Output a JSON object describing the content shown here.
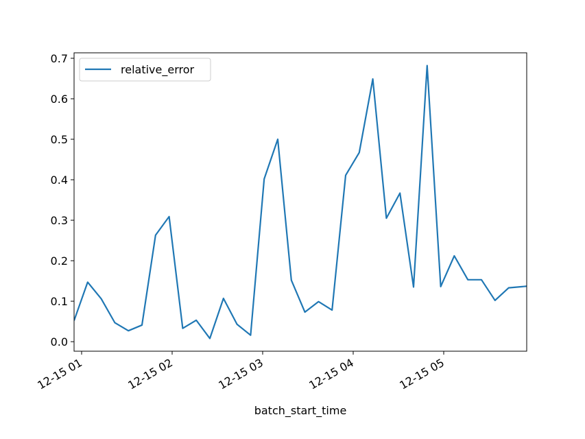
{
  "chart_data": {
    "type": "line",
    "title": "",
    "xlabel": "batch_start_time",
    "ylabel": "",
    "x_type": "time",
    "x_range": [
      "12-15 00:55",
      "12-15 05:55"
    ],
    "ylim": [
      -0.0235,
      0.7135
    ],
    "grid": false,
    "legend_position": "top-left",
    "x_ticks": [
      {
        "value": "12-15 01:00",
        "label": "12-15 01"
      },
      {
        "value": "12-15 02:00",
        "label": "12-15 02"
      },
      {
        "value": "12-15 03:00",
        "label": "12-15 03"
      },
      {
        "value": "12-15 04:00",
        "label": "12-15 04"
      },
      {
        "value": "12-15 05:00",
        "label": "12-15 05"
      }
    ],
    "y_ticks": [
      {
        "value": 0.0,
        "label": "0.0"
      },
      {
        "value": 0.1,
        "label": "0.1"
      },
      {
        "value": 0.2,
        "label": "0.2"
      },
      {
        "value": 0.3,
        "label": "0.3"
      },
      {
        "value": 0.4,
        "label": "0.4"
      },
      {
        "value": 0.5,
        "label": "0.5"
      },
      {
        "value": 0.6,
        "label": "0.6"
      },
      {
        "value": 0.7,
        "label": "0.7"
      }
    ],
    "series": [
      {
        "name": "relative_error",
        "color": "#1f77b4",
        "points": [
          {
            "x": "12-15 00:55",
            "y": 0.052
          },
          {
            "x": "12-15 01:04",
            "y": 0.147
          },
          {
            "x": "12-15 01:13",
            "y": 0.106
          },
          {
            "x": "12-15 01:22",
            "y": 0.047
          },
          {
            "x": "12-15 01:31",
            "y": 0.027
          },
          {
            "x": "12-15 01:40",
            "y": 0.041
          },
          {
            "x": "12-15 01:49",
            "y": 0.263
          },
          {
            "x": "12-15 01:58",
            "y": 0.309
          },
          {
            "x": "12-15 02:07",
            "y": 0.033
          },
          {
            "x": "12-15 02:16",
            "y": 0.053
          },
          {
            "x": "12-15 02:25",
            "y": 0.008
          },
          {
            "x": "12-15 02:34",
            "y": 0.107
          },
          {
            "x": "12-15 02:43",
            "y": 0.043
          },
          {
            "x": "12-15 02:52",
            "y": 0.016
          },
          {
            "x": "12-15 03:01",
            "y": 0.402
          },
          {
            "x": "12-15 03:10",
            "y": 0.5
          },
          {
            "x": "12-15 03:19",
            "y": 0.152
          },
          {
            "x": "12-15 03:28",
            "y": 0.073
          },
          {
            "x": "12-15 03:37",
            "y": 0.099
          },
          {
            "x": "12-15 03:46",
            "y": 0.078
          },
          {
            "x": "12-15 03:55",
            "y": 0.411
          },
          {
            "x": "12-15 04:04",
            "y": 0.467
          },
          {
            "x": "12-15 04:13",
            "y": 0.649
          },
          {
            "x": "12-15 04:22",
            "y": 0.305
          },
          {
            "x": "12-15 04:31",
            "y": 0.367
          },
          {
            "x": "12-15 04:40",
            "y": 0.135
          },
          {
            "x": "12-15 04:49",
            "y": 0.682
          },
          {
            "x": "12-15 04:58",
            "y": 0.136
          },
          {
            "x": "12-15 05:07",
            "y": 0.212
          },
          {
            "x": "12-15 05:16",
            "y": 0.153
          },
          {
            "x": "12-15 05:25",
            "y": 0.153
          },
          {
            "x": "12-15 05:34",
            "y": 0.102
          },
          {
            "x": "12-15 05:43",
            "y": 0.133
          },
          {
            "x": "12-15 05:52",
            "y": 0.136
          },
          {
            "x": "12-15 06:01",
            "y": 0.139
          }
        ]
      }
    ]
  }
}
